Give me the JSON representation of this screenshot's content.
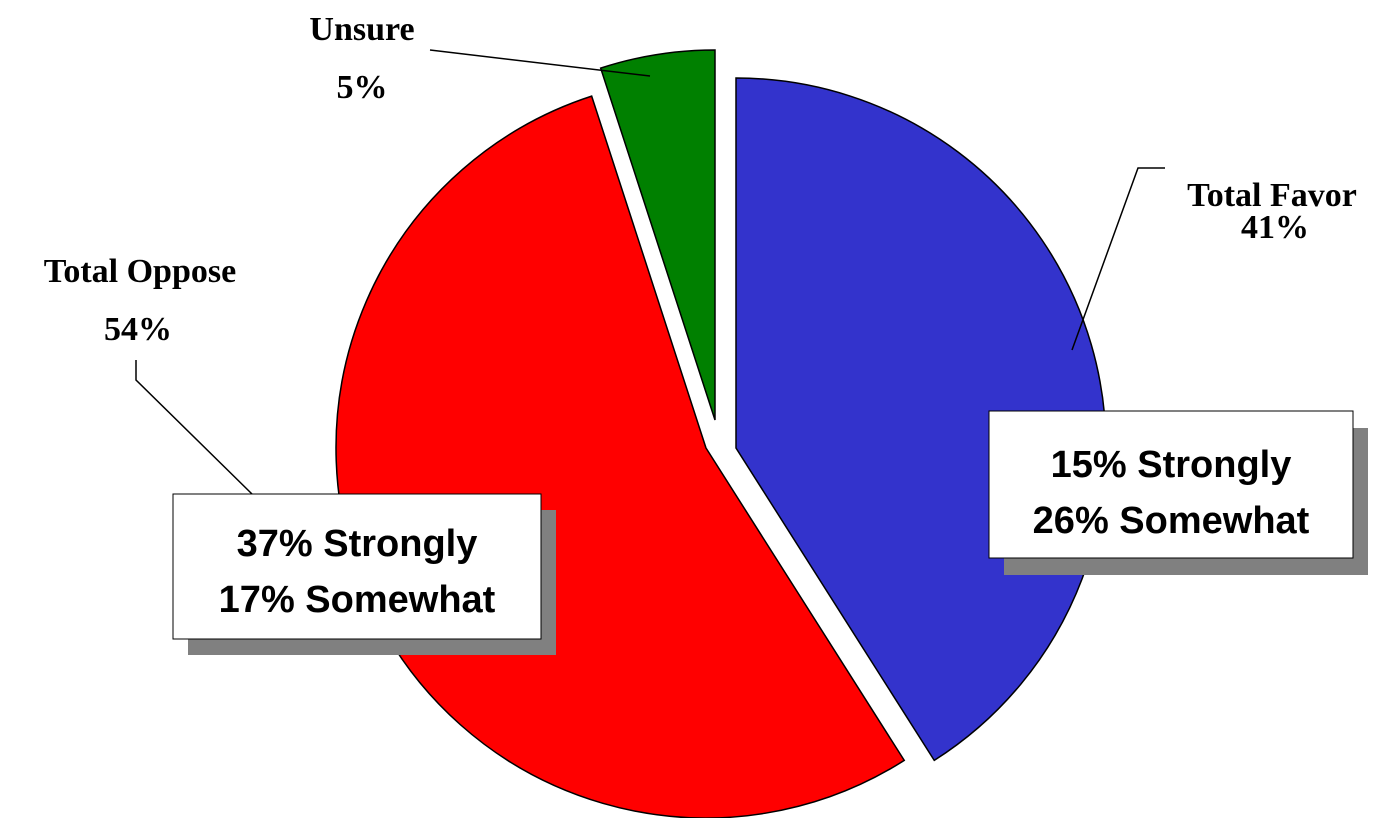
{
  "chart_data": {
    "type": "pie",
    "slices": [
      {
        "label": "Total Favor",
        "percent_label": "41%",
        "value": 41,
        "color": "#3333cc",
        "breakdown": [
          "15% Strongly",
          "26% Somewhat"
        ]
      },
      {
        "label": "Total Oppose",
        "percent_label": "54%",
        "value": 54,
        "color": "#ff0000",
        "breakdown": [
          "37% Strongly",
          "17% Somewhat"
        ]
      },
      {
        "label": "Unsure",
        "percent_label": "5%",
        "value": 5,
        "color": "#008000",
        "breakdown": []
      }
    ],
    "exploded": true,
    "legend": "none"
  }
}
